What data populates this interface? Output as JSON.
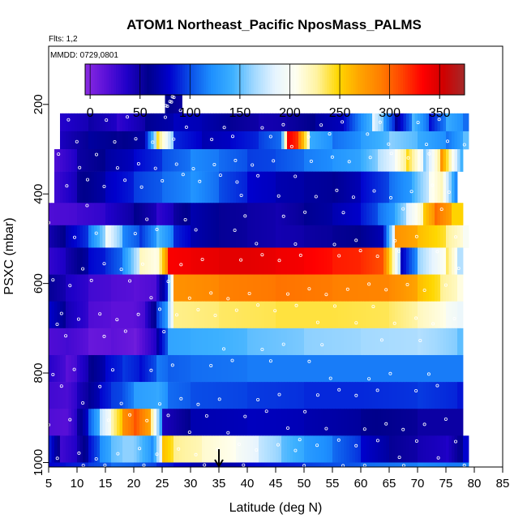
{
  "chart_data": {
    "type": "heatmap",
    "title": "ATOM1 Northeast_Pacific NposMass_PALMS",
    "flights_note": "Flts: 1,2",
    "dates_note": "MMDD: 0729,0801",
    "xlabel": "Latitude (deg N)",
    "ylabel": "PSXC (mbar)",
    "xlim": [
      5,
      85
    ],
    "ylim": [
      1010,
      70
    ],
    "x_ticks": [
      "5",
      "10",
      "15",
      "20",
      "25",
      "30",
      "35",
      "40",
      "45",
      "50",
      "55",
      "60",
      "65",
      "70",
      "75",
      "80",
      "85"
    ],
    "y_ticks": [
      "200",
      "400",
      "600",
      "800",
      "1000"
    ],
    "colorbar": {
      "range": [
        -5,
        375
      ],
      "ticks": [
        "0",
        "50",
        "100",
        "150",
        "200",
        "250",
        "300",
        "350"
      ],
      "colors": [
        "#8a2be2",
        "#5a10d8",
        "#1f00c8",
        "#00008b",
        "#0000cd",
        "#0a50e8",
        "#1e90ff",
        "#3cb0ff",
        "#a0d8ff",
        "#e6f4ff",
        "#fffff0",
        "#fff3a0",
        "#ffd700",
        "#ffa500",
        "#ff7f00",
        "#ff4500",
        "#ff0000",
        "#d00000",
        "#a52a2a"
      ]
    },
    "marker_latitude": 35,
    "bins": [
      {
        "p": [
          160,
          220
        ],
        "x0": 25.5,
        "x1": 28.5,
        "segs": [
          [
            25.5,
            60
          ],
          [
            28.5,
            45
          ]
        ]
      },
      {
        "p": [
          220,
          260
        ],
        "x0": 7,
        "x1": 79,
        "segs": [
          [
            7,
            35
          ],
          [
            12,
            50
          ],
          [
            17,
            30
          ],
          [
            22,
            60
          ],
          [
            27,
            75
          ],
          [
            32,
            70
          ],
          [
            37,
            55
          ],
          [
            42,
            45
          ],
          [
            47,
            50
          ],
          [
            52,
            65
          ],
          [
            57,
            80
          ],
          [
            62,
            190
          ],
          [
            64,
            130
          ],
          [
            66,
            60
          ],
          [
            69,
            150
          ],
          [
            72,
            80
          ],
          [
            75,
            140
          ],
          [
            78,
            110
          ]
        ]
      },
      {
        "p": [
          260,
          300
        ],
        "x0": 7,
        "x1": 79,
        "segs": [
          [
            7,
            40
          ],
          [
            12,
            65
          ],
          [
            17,
            55
          ],
          [
            22,
            75
          ],
          [
            24,
            250
          ],
          [
            27,
            90
          ],
          [
            32,
            70
          ],
          [
            37,
            80
          ],
          [
            42,
            95
          ],
          [
            46,
            120
          ],
          [
            47,
            340
          ],
          [
            49,
            300
          ],
          [
            51,
            140
          ],
          [
            55,
            110
          ],
          [
            60,
            130
          ],
          [
            65,
            160
          ],
          [
            70,
            140
          ],
          [
            75,
            110
          ],
          [
            78,
            150
          ]
        ]
      },
      {
        "p": [
          300,
          350
        ],
        "x0": 6,
        "x1": 78,
        "segs": [
          [
            6,
            20
          ],
          [
            10,
            50
          ],
          [
            15,
            65
          ],
          [
            20,
            80
          ],
          [
            25,
            100
          ],
          [
            30,
            120
          ],
          [
            35,
            110
          ],
          [
            40,
            95
          ],
          [
            45,
            100
          ],
          [
            50,
            115
          ],
          [
            55,
            125
          ],
          [
            60,
            140
          ],
          [
            63,
            170
          ],
          [
            66,
            200
          ],
          [
            68,
            250
          ],
          [
            71,
            150
          ],
          [
            74,
            290
          ],
          [
            78,
            30
          ]
        ]
      },
      {
        "p": [
          350,
          420
        ],
        "x0": 6,
        "x1": 77,
        "segs": [
          [
            6,
            25
          ],
          [
            10,
            55
          ],
          [
            15,
            75
          ],
          [
            20,
            95
          ],
          [
            25,
            110
          ],
          [
            30,
            125
          ],
          [
            35,
            100
          ],
          [
            40,
            80
          ],
          [
            45,
            70
          ],
          [
            50,
            65
          ],
          [
            55,
            60
          ],
          [
            60,
            80
          ],
          [
            65,
            110
          ],
          [
            69,
            140
          ],
          [
            72,
            200
          ],
          [
            74,
            230
          ],
          [
            77,
            30
          ]
        ]
      },
      {
        "p": [
          420,
          470
        ],
        "x0": 5,
        "x1": 78,
        "segs": [
          [
            5,
            20
          ],
          [
            10,
            25
          ],
          [
            15,
            35
          ],
          [
            20,
            60
          ],
          [
            24,
            30
          ],
          [
            27,
            50
          ],
          [
            30,
            70
          ],
          [
            35,
            55
          ],
          [
            40,
            50
          ],
          [
            45,
            45
          ],
          [
            50,
            60
          ],
          [
            55,
            70
          ],
          [
            60,
            85
          ],
          [
            63,
            110
          ],
          [
            66,
            140
          ],
          [
            68,
            180
          ],
          [
            71,
            250
          ],
          [
            73,
            300
          ],
          [
            76,
            250
          ]
        ]
      },
      {
        "p": [
          470,
          520
        ],
        "x0": 5,
        "x1": 79,
        "segs": [
          [
            5,
            45
          ],
          [
            8,
            70
          ],
          [
            12,
            110
          ],
          [
            15,
            200
          ],
          [
            18,
            120
          ],
          [
            21,
            90
          ],
          [
            24,
            150
          ],
          [
            27,
            90
          ],
          [
            30,
            70
          ],
          [
            35,
            55
          ],
          [
            40,
            50
          ],
          [
            45,
            45
          ],
          [
            50,
            50
          ],
          [
            55,
            55
          ],
          [
            60,
            60
          ],
          [
            64,
            80
          ],
          [
            66,
            280
          ],
          [
            70,
            260
          ],
          [
            75,
            230
          ],
          [
            78,
            200
          ]
        ]
      },
      {
        "p": [
          520,
          580
        ],
        "x0": 5,
        "x1": 78,
        "segs": [
          [
            5,
            30
          ],
          [
            8,
            45
          ],
          [
            12,
            80
          ],
          [
            15,
            90
          ],
          [
            18,
            120
          ],
          [
            21,
            220
          ],
          [
            24,
            200
          ],
          [
            25.8,
            335
          ],
          [
            30,
            340
          ],
          [
            35,
            345
          ],
          [
            40,
            345
          ],
          [
            45,
            340
          ],
          [
            50,
            335
          ],
          [
            55,
            325
          ],
          [
            60,
            320
          ],
          [
            64,
            300
          ],
          [
            67,
            70
          ],
          [
            70,
            160
          ],
          [
            75,
            240
          ],
          [
            77,
            170
          ]
        ]
      },
      {
        "p": [
          580,
          640
        ],
        "x0": 5,
        "x1": 78,
        "segs": [
          [
            5,
            55
          ],
          [
            8,
            40
          ],
          [
            12,
            25
          ],
          [
            16,
            20
          ],
          [
            20,
            15
          ],
          [
            24,
            25
          ],
          [
            26,
            140
          ],
          [
            27,
            280
          ],
          [
            35,
            290
          ],
          [
            45,
            295
          ],
          [
            55,
            290
          ],
          [
            65,
            285
          ],
          [
            70,
            260
          ],
          [
            74,
            230
          ],
          [
            77,
            210
          ]
        ]
      },
      {
        "p": [
          640,
          700
        ],
        "x0": 5,
        "x1": 78,
        "segs": [
          [
            5,
            80
          ],
          [
            8,
            45
          ],
          [
            12,
            20
          ],
          [
            16,
            15
          ],
          [
            20,
            15
          ],
          [
            22,
            30
          ],
          [
            24,
            90
          ],
          [
            26,
            160
          ],
          [
            27,
            230
          ],
          [
            35,
            235
          ],
          [
            45,
            240
          ],
          [
            55,
            240
          ],
          [
            65,
            235
          ],
          [
            70,
            220
          ],
          [
            75,
            200
          ],
          [
            77,
            190
          ]
        ]
      },
      {
        "p": [
          700,
          760
        ],
        "x0": 5,
        "x1": 78,
        "segs": [
          [
            5,
            20
          ],
          [
            8,
            25
          ],
          [
            12,
            10
          ],
          [
            16,
            15
          ],
          [
            20,
            5
          ],
          [
            24,
            60
          ],
          [
            26,
            135
          ],
          [
            30,
            140
          ],
          [
            40,
            150
          ],
          [
            50,
            160
          ],
          [
            60,
            165
          ],
          [
            70,
            170
          ],
          [
            77,
            150
          ]
        ]
      },
      {
        "p": [
          760,
          820
        ],
        "x0": 5,
        "x1": 78,
        "segs": [
          [
            5,
            35
          ],
          [
            8,
            15
          ],
          [
            10,
            30
          ],
          [
            12,
            55
          ],
          [
            15,
            80
          ],
          [
            18,
            95
          ],
          [
            21,
            80
          ],
          [
            24,
            115
          ],
          [
            26,
            105
          ],
          [
            30,
            110
          ],
          [
            40,
            115
          ],
          [
            50,
            115
          ],
          [
            60,
            115
          ],
          [
            70,
            115
          ],
          [
            77,
            115
          ]
        ]
      },
      {
        "p": [
          820,
          880
        ],
        "x0": 5,
        "x1": 78,
        "segs": [
          [
            5,
            25
          ],
          [
            8,
            20
          ],
          [
            10,
            40
          ],
          [
            12,
            60
          ],
          [
            14,
            80
          ],
          [
            16,
            95
          ],
          [
            18,
            100
          ],
          [
            20,
            130
          ],
          [
            24,
            140
          ],
          [
            26,
            110
          ],
          [
            30,
            100
          ],
          [
            40,
            95
          ],
          [
            50,
            90
          ],
          [
            60,
            90
          ],
          [
            70,
            95
          ],
          [
            77,
            85
          ]
        ]
      },
      {
        "p": [
          880,
          940
        ],
        "x0": 5,
        "x1": 78,
        "segs": [
          [
            5,
            20
          ],
          [
            8,
            15
          ],
          [
            10,
            50
          ],
          [
            12,
            100
          ],
          [
            14,
            170
          ],
          [
            16,
            220
          ],
          [
            18,
            280
          ],
          [
            20,
            310
          ],
          [
            23,
            240
          ],
          [
            25,
            40
          ],
          [
            30,
            70
          ],
          [
            40,
            75
          ],
          [
            50,
            70
          ],
          [
            60,
            60
          ],
          [
            70,
            50
          ],
          [
            77,
            50
          ]
        ]
      },
      {
        "p": [
          940,
          1000
        ],
        "x0": 5,
        "x1": 79,
        "segs": [
          [
            5,
            90
          ],
          [
            7,
            25
          ],
          [
            10,
            45
          ],
          [
            12,
            80
          ],
          [
            14,
            120
          ],
          [
            16,
            150
          ],
          [
            18,
            160
          ],
          [
            20,
            160
          ],
          [
            23,
            110
          ],
          [
            25,
            260
          ],
          [
            27,
            230
          ],
          [
            32,
            215
          ],
          [
            38,
            200
          ],
          [
            42,
            175
          ],
          [
            46,
            150
          ],
          [
            50,
            130
          ],
          [
            55,
            110
          ],
          [
            60,
            80
          ],
          [
            65,
            55
          ],
          [
            70,
            45
          ],
          [
            75,
            35
          ],
          [
            78,
            80
          ]
        ]
      },
      {
        "p": [
          1000,
          1010
        ],
        "x0": 5,
        "x1": 79,
        "segs": [
          [
            5,
            80
          ],
          [
            8,
            85
          ],
          [
            12,
            95
          ],
          [
            16,
            110
          ],
          [
            20,
            105
          ],
          [
            24,
            90
          ],
          [
            27,
            80
          ],
          [
            30,
            70
          ],
          [
            35,
            65
          ],
          [
            40,
            80
          ],
          [
            50,
            95
          ],
          [
            60,
            110
          ],
          [
            70,
            120
          ],
          [
            75,
            115
          ]
        ]
      }
    ]
  }
}
